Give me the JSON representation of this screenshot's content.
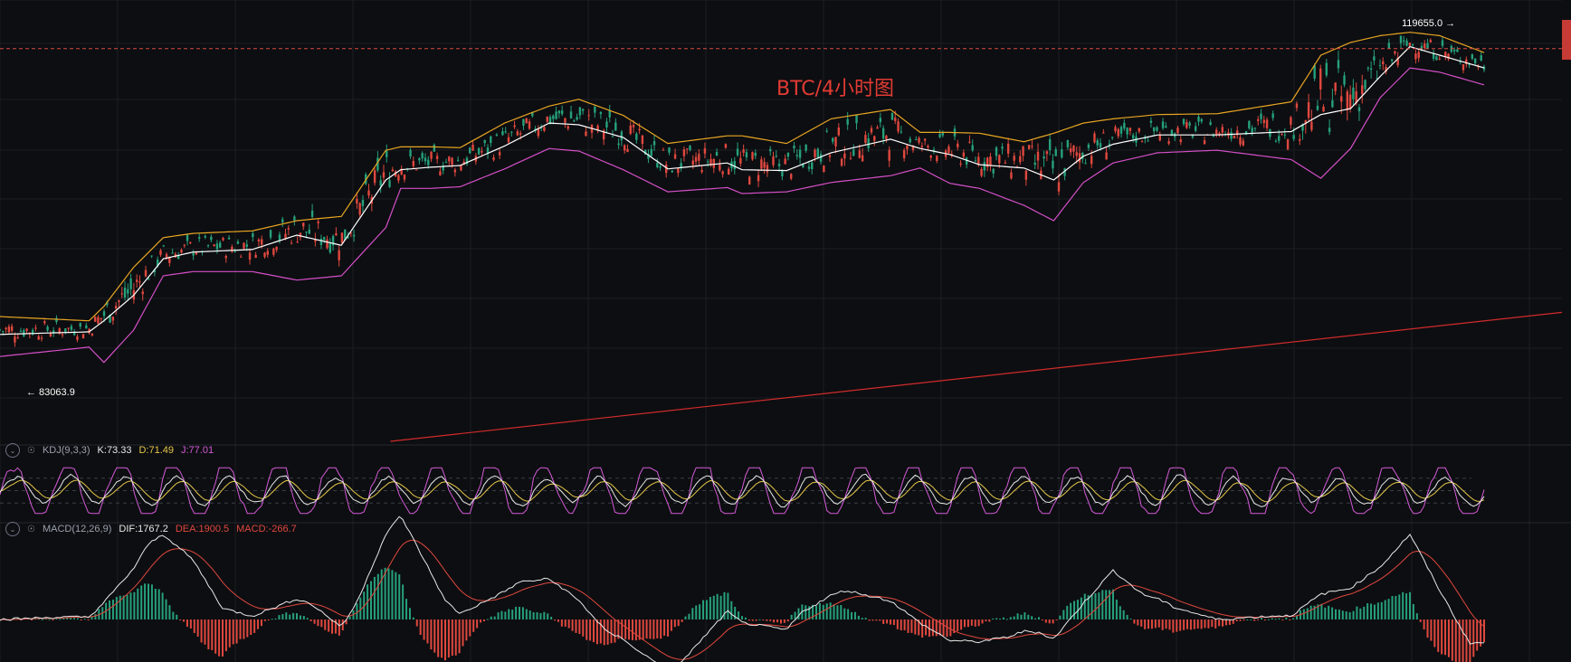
{
  "chart_data": {
    "type": "line",
    "title": "BTC/4小时图",
    "price_panel": {
      "ylim": [
        72000,
        124000
      ],
      "high_label": "119655.0 →",
      "low_label": "← 83063.9",
      "marked_high": 119655.0,
      "marked_low": 83063.9,
      "trendline": {
        "x": [
          0.25,
          1.0
        ],
        "y": [
          72000,
          87200
        ]
      },
      "bollinger_anchor_x": [
        0,
        0.06,
        0.07,
        0.09,
        0.11,
        0.13,
        0.17,
        0.2,
        0.23,
        0.26,
        0.27,
        0.29,
        0.31,
        0.34,
        0.37,
        0.39,
        0.42,
        0.45,
        0.49,
        0.5,
        0.53,
        0.56,
        0.6,
        0.62,
        0.64,
        0.66,
        0.69,
        0.71,
        0.73,
        0.75,
        0.78,
        0.82,
        0.87,
        0.89,
        0.91,
        0.93,
        0.95,
        0.97,
        1.0
      ],
      "bollinger_mid": [
        84600,
        84900,
        86200,
        89200,
        93500,
        94300,
        94600,
        96300,
        95100,
        102800,
        104000,
        104300,
        104500,
        106800,
        109500,
        109300,
        107800,
        104100,
        104800,
        104000,
        103900,
        106000,
        107600,
        106500,
        105800,
        104600,
        104200,
        102800,
        105600,
        107000,
        108100,
        108100,
        108500,
        110500,
        111200,
        115000,
        118500,
        117500,
        116000
      ],
      "bollinger_upper": [
        86700,
        86200,
        87900,
        92500,
        96000,
        96500,
        96800,
        98000,
        98500,
        106300,
        106700,
        106700,
        106600,
        109500,
        111500,
        112300,
        110400,
        107100,
        108000,
        108000,
        107100,
        110000,
        111100,
        108400,
        108400,
        108300,
        107300,
        108300,
        109500,
        110000,
        110500,
        110600,
        112000,
        117500,
        119000,
        119800,
        120200,
        119800,
        117800
      ],
      "bollinger_lower": [
        82000,
        83100,
        81300,
        85100,
        91500,
        92000,
        92000,
        91000,
        91500,
        97200,
        101800,
        101800,
        102000,
        104100,
        106500,
        106200,
        104000,
        101400,
        101900,
        101200,
        101400,
        102500,
        103300,
        104200,
        102400,
        101800,
        99800,
        98000,
        102500,
        104800,
        106000,
        106300,
        105200,
        103000,
        106500,
        112500,
        116000,
        115500,
        114000
      ]
    },
    "kdj": {
      "label": "KDJ(9,3,3)",
      "K_label": "K:73.33",
      "D_label": "D:71.49",
      "J_label": "J:77.01",
      "K": 73.33,
      "D": 71.49,
      "J": 77.01,
      "ylim": [
        -10,
        110
      ],
      "reference_lines": [
        20,
        50,
        80
      ]
    },
    "macd": {
      "label": "MACD(12,26,9)",
      "DIF_label": "DIF:1767.2",
      "DEA_label": "DEA:1900.5",
      "MACD_label": "MACD:-266.7",
      "DIF": 1767.2,
      "DEA": 1900.5,
      "MACD": -266.7,
      "ylim": [
        -3000,
        5500
      ]
    }
  },
  "colors": {
    "background": "#0d0e11",
    "grid": "#1c1e24",
    "bull": "#26a17b",
    "bear": "#e0483f",
    "boll_mid": "#ffffff",
    "boll_upper": "#e7a523",
    "boll_lower": "#d44fc8",
    "trendline": "#d12b2b",
    "price_line": "#d94a44",
    "k_line": "#e8e8e8",
    "d_line": "#e6c84a",
    "j_line": "#d45ad8",
    "dif_line": "#e8e8e8",
    "dea_line": "#e0483f"
  },
  "icons": {
    "collapse": "chevron-down-icon",
    "alert": "bell-icon"
  }
}
